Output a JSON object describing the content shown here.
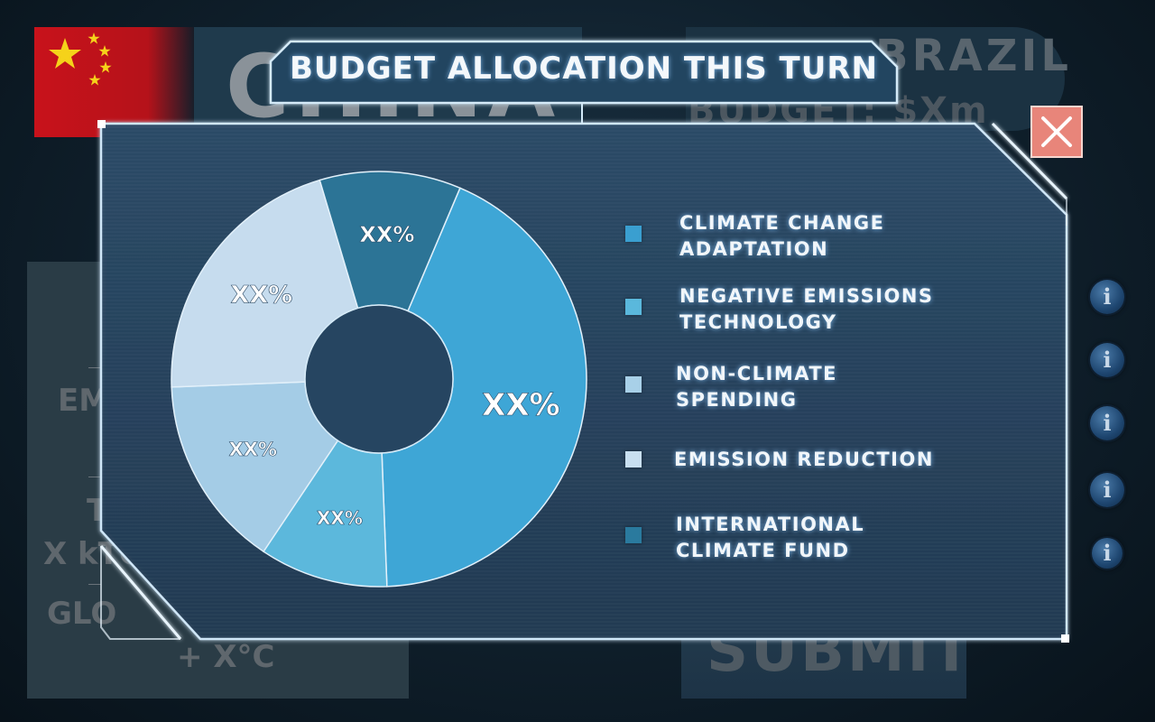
{
  "background": {
    "country": "CHINA",
    "opponent_country": "BRAZIL",
    "opponent_budget": "BUDGET: $Xm",
    "stats": {
      "emissions_label": "EM",
      "temperature_label": "T",
      "emissions_value": "X kTO",
      "global_label": "GLO",
      "global_temp_value": "+ X°C"
    },
    "submit_label": "SUBMIT",
    "info_glyph": "i"
  },
  "modal": {
    "title": "BUDGET ALLOCATION THIS TURN",
    "close_icon": "close-icon",
    "legend": [
      {
        "line1": "CLIMATE CHANGE",
        "line2": "ADAPTATION",
        "color": "#3a9fd0"
      },
      {
        "line1": "NEGATIVE EMISSIONS",
        "line2": "TECHNOLOGY",
        "color": "#5ab8dc"
      },
      {
        "line1": "NON-CLIMATE",
        "line2": "SPENDING",
        "color": "#a8d0e8"
      },
      {
        "line1": "EMISSION REDUCTION",
        "line2": "",
        "color": "#c8dff0"
      },
      {
        "line1": "INTERNATIONAL",
        "line2": "CLIMATE FUND",
        "color": "#2a7a9e"
      }
    ]
  },
  "chart_data": {
    "type": "pie",
    "donut": true,
    "slices": [
      {
        "category": "CLIMATE CHANGE ADAPTATION",
        "value": 43,
        "label": "XX%",
        "color": "#3ea6d6"
      },
      {
        "category": "NEGATIVE EMISSIONS TECHNOLOGY",
        "value": 10,
        "label": "XX%",
        "color": "#5cb8dc"
      },
      {
        "category": "NON-CLIMATE SPENDING",
        "value": 15,
        "label": "XX%",
        "color": "#a4cce6"
      },
      {
        "category": "EMISSION REDUCTION",
        "value": 21,
        "label": "XX%",
        "color": "#c6dcee"
      },
      {
        "category": "INTERNATIONAL CLIMATE FUND",
        "value": 11,
        "label": "XX%",
        "color": "#2c7496"
      }
    ]
  }
}
